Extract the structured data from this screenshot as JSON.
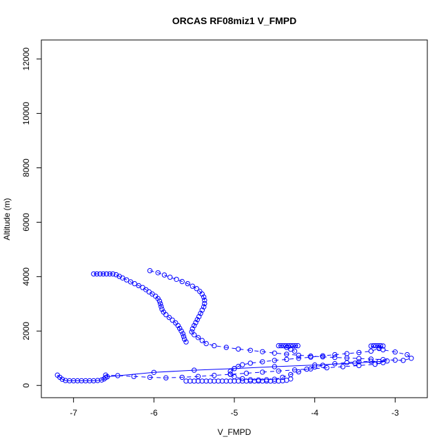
{
  "chart_data": {
    "type": "scatter",
    "title": "ORCAS RF08miz1 V_FMPD",
    "xlabel": "V_FMPD",
    "ylabel": "Altitude (m)",
    "xlim": [
      -7.4,
      -2.6
    ],
    "ylim": [
      -450,
      12700
    ],
    "xticks": [
      -7,
      -6,
      -5,
      -4,
      -3
    ],
    "yticks": [
      0,
      2000,
      4000,
      6000,
      8000,
      10000,
      12000
    ],
    "grid": false,
    "colors": {
      "series": "#0000ff",
      "axes": "#000000"
    },
    "series": [
      {
        "marker": "open-circle",
        "line": "dashed",
        "points": [
          [
            -6.05,
            4220
          ],
          [
            -5.95,
            4140
          ],
          [
            -5.87,
            4060
          ],
          [
            -5.8,
            3980
          ],
          [
            -5.72,
            3900
          ],
          [
            -5.65,
            3820
          ],
          [
            -5.58,
            3740
          ],
          [
            -5.52,
            3650
          ],
          [
            -5.47,
            3560
          ],
          [
            -5.43,
            3460
          ],
          [
            -5.4,
            3360
          ],
          [
            -5.38,
            3250
          ],
          [
            -5.37,
            3130
          ],
          [
            -5.37,
            3010
          ],
          [
            -5.38,
            2890
          ],
          [
            -5.4,
            2770
          ],
          [
            -5.42,
            2650
          ],
          [
            -5.44,
            2530
          ],
          [
            -5.46,
            2420
          ],
          [
            -5.48,
            2310
          ],
          [
            -5.5,
            2200
          ],
          [
            -5.52,
            2080
          ],
          [
            -5.53,
            1970
          ],
          [
            -5.5,
            1860
          ],
          [
            -5.45,
            1760
          ],
          [
            -5.4,
            1650
          ],
          [
            -5.35,
            1540
          ],
          [
            -5.25,
            1460
          ],
          [
            -5.1,
            1400
          ],
          [
            -4.95,
            1340
          ],
          [
            -4.8,
            1290
          ],
          [
            -4.65,
            1240
          ],
          [
            -4.5,
            1190
          ],
          [
            -4.35,
            1150
          ],
          [
            -4.2,
            1110
          ],
          [
            -4.05,
            1080
          ],
          [
            -3.9,
            1050
          ],
          [
            -3.75,
            1030
          ],
          [
            -3.6,
            1010
          ],
          [
            -3.45,
            990
          ],
          [
            -3.3,
            970
          ],
          [
            -3.15,
            950
          ],
          [
            -3.0,
            930
          ],
          [
            -2.9,
            920
          ],
          [
            -2.8,
            1000
          ],
          [
            -2.85,
            1130
          ],
          [
            -3.0,
            1230
          ],
          [
            -3.15,
            1310
          ],
          [
            -3.2,
            1380
          ],
          [
            -3.3,
            1450
          ],
          [
            -3.27,
            1460
          ],
          [
            -3.24,
            1460
          ],
          [
            -3.21,
            1460
          ],
          [
            -3.18,
            1460
          ],
          [
            -3.15,
            1450
          ],
          [
            -3.2,
            1360
          ],
          [
            -3.3,
            1260
          ],
          [
            -3.45,
            1210
          ],
          [
            -3.6,
            1170
          ],
          [
            -3.75,
            1130
          ],
          [
            -3.9,
            1090
          ],
          [
            -4.05,
            1040
          ],
          [
            -4.2,
            1000
          ],
          [
            -4.35,
            960
          ],
          [
            -4.5,
            920
          ],
          [
            -4.65,
            870
          ],
          [
            -4.8,
            820
          ],
          [
            -4.9,
            760
          ],
          [
            -4.95,
            700
          ],
          [
            -5.0,
            620
          ],
          [
            -5.05,
            520
          ],
          [
            -5.05,
            420
          ],
          [
            -5.0,
            320
          ],
          [
            -4.9,
            250
          ],
          [
            -4.8,
            210
          ],
          [
            -4.7,
            200
          ],
          [
            -4.6,
            210
          ],
          [
            -4.5,
            230
          ],
          [
            -4.4,
            300
          ],
          [
            -4.3,
            400
          ],
          [
            -4.2,
            500
          ],
          [
            -4.1,
            600
          ],
          [
            -4.0,
            680
          ],
          [
            -3.9,
            740
          ],
          [
            -3.75,
            800
          ],
          [
            -3.6,
            840
          ],
          [
            -3.45,
            870
          ],
          [
            -3.3,
            890
          ],
          [
            -3.2,
            880
          ],
          [
            -3.15,
            840
          ],
          [
            -3.25,
            780
          ],
          [
            -3.45,
            730
          ],
          [
            -3.65,
            690
          ],
          [
            -3.85,
            650
          ],
          [
            -4.05,
            610
          ],
          [
            -4.25,
            570
          ],
          [
            -4.45,
            530
          ],
          [
            -4.65,
            490
          ],
          [
            -4.85,
            450
          ],
          [
            -5.05,
            410
          ],
          [
            -5.25,
            370
          ],
          [
            -5.45,
            330
          ],
          [
            -5.65,
            300
          ],
          [
            -5.85,
            280
          ],
          [
            -6.05,
            300
          ],
          [
            -6.25,
            330
          ],
          [
            -6.45,
            360
          ],
          [
            -6.6,
            380
          ]
        ]
      },
      {
        "marker": "open-circle",
        "line": "dashed",
        "points": [
          [
            -6.75,
            4100
          ],
          [
            -6.71,
            4100
          ],
          [
            -6.67,
            4100
          ],
          [
            -6.63,
            4100
          ],
          [
            -6.59,
            4100
          ],
          [
            -6.55,
            4100
          ],
          [
            -6.51,
            4100
          ],
          [
            -6.47,
            4070
          ],
          [
            -6.43,
            4010
          ],
          [
            -6.39,
            3950
          ],
          [
            -6.34,
            3880
          ],
          [
            -6.29,
            3810
          ],
          [
            -6.24,
            3740
          ],
          [
            -6.19,
            3670
          ],
          [
            -6.14,
            3600
          ],
          [
            -6.1,
            3520
          ],
          [
            -6.06,
            3440
          ],
          [
            -6.02,
            3360
          ],
          [
            -5.98,
            3280
          ],
          [
            -5.95,
            3190
          ],
          [
            -5.93,
            3100
          ],
          [
            -5.92,
            3000
          ],
          [
            -5.91,
            2900
          ],
          [
            -5.9,
            2800
          ],
          [
            -5.88,
            2700
          ],
          [
            -5.85,
            2600
          ],
          [
            -5.81,
            2500
          ],
          [
            -5.77,
            2400
          ],
          [
            -5.73,
            2300
          ],
          [
            -5.7,
            2200
          ],
          [
            -5.68,
            2100
          ],
          [
            -5.66,
            2000
          ],
          [
            -5.64,
            1900
          ],
          [
            -5.63,
            1800
          ],
          [
            -5.62,
            1700
          ],
          [
            -5.6,
            1600
          ]
        ]
      },
      {
        "marker": "open-circle",
        "line": "dashed",
        "points": [
          [
            -4.45,
            1460
          ],
          [
            -4.42,
            1460
          ],
          [
            -4.39,
            1460
          ],
          [
            -4.36,
            1460
          ],
          [
            -4.33,
            1460
          ],
          [
            -4.3,
            1460
          ],
          [
            -4.27,
            1460
          ],
          [
            -4.24,
            1460
          ],
          [
            -4.21,
            1460
          ],
          [
            -4.35,
            1400
          ],
          [
            -4.3,
            1330
          ],
          [
            -4.25,
            1260
          ]
        ]
      },
      {
        "marker": "open-circle",
        "line": "solid",
        "points": [
          [
            -7.2,
            380
          ],
          [
            -7.17,
            300
          ],
          [
            -7.14,
            230
          ],
          [
            -7.1,
            180
          ],
          [
            -7.05,
            170
          ],
          [
            -7.0,
            170
          ],
          [
            -6.95,
            170
          ],
          [
            -6.9,
            170
          ],
          [
            -6.85,
            170
          ],
          [
            -6.8,
            170
          ],
          [
            -6.75,
            170
          ],
          [
            -6.7,
            180
          ],
          [
            -6.65,
            200
          ],
          [
            -6.62,
            240
          ],
          [
            -6.6,
            290
          ],
          [
            -6.58,
            320
          ],
          [
            -6.0,
            480
          ],
          [
            -5.5,
            560
          ],
          [
            -5.0,
            620
          ],
          [
            -4.5,
            690
          ],
          [
            -4.0,
            750
          ],
          [
            -3.5,
            820
          ],
          [
            -3.1,
            900
          ]
        ]
      },
      {
        "marker": "open-circle",
        "line": "none",
        "points": [
          [
            -5.6,
            160
          ],
          [
            -5.55,
            160
          ],
          [
            -5.5,
            160
          ],
          [
            -5.45,
            160
          ],
          [
            -5.4,
            160
          ],
          [
            -5.35,
            160
          ],
          [
            -5.3,
            160
          ],
          [
            -5.25,
            160
          ],
          [
            -5.2,
            160
          ],
          [
            -5.15,
            160
          ],
          [
            -5.1,
            160
          ],
          [
            -5.05,
            160
          ],
          [
            -5.0,
            160
          ],
          [
            -4.95,
            160
          ],
          [
            -4.9,
            160
          ],
          [
            -4.85,
            160
          ],
          [
            -4.8,
            160
          ],
          [
            -4.75,
            160
          ],
          [
            -4.7,
            160
          ],
          [
            -4.65,
            160
          ],
          [
            -4.6,
            160
          ],
          [
            -4.55,
            160
          ],
          [
            -4.5,
            160
          ],
          [
            -4.45,
            160
          ],
          [
            -4.4,
            170
          ],
          [
            -4.35,
            190
          ],
          [
            -4.3,
            240
          ]
        ]
      }
    ]
  }
}
